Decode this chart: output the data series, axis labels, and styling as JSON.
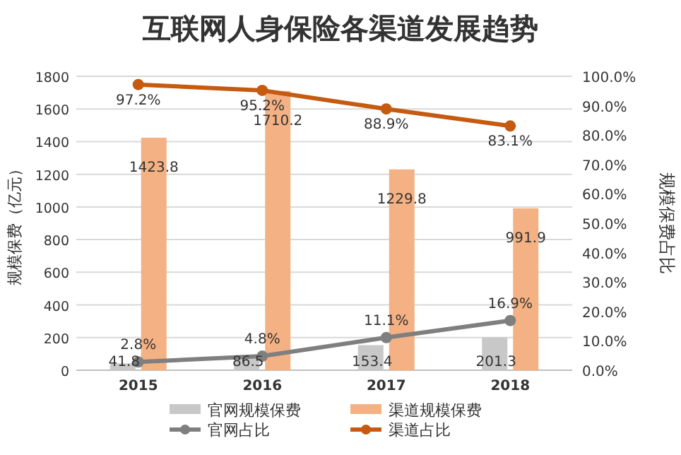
{
  "chart_data": {
    "type": "bar",
    "title": "互联网人身保险各渠道发展趋势",
    "ylabel": "规模保费（亿元）",
    "y2label": "规模保费占比",
    "categories": [
      "2015",
      "2016",
      "2017",
      "2018"
    ],
    "series": [
      {
        "name": "官网规模保费",
        "color": "#c8c8c8",
        "values": [
          41.8,
          86.5,
          153.4,
          201.3
        ],
        "value_labels": [
          "41.8",
          "86.5",
          "153.4",
          "201.3"
        ]
      },
      {
        "name": "渠道规模保费",
        "color": "#f4b183",
        "values": [
          1423.8,
          1710.2,
          1229.8,
          991.9
        ],
        "value_labels": [
          "1423.8",
          "1710.2",
          "1229.8",
          "991.9"
        ]
      },
      {
        "name": "官网占比",
        "type": "line",
        "axis": "y2",
        "color": "#7f7f7f",
        "marker": "circle",
        "values": [
          2.8,
          4.8,
          11.1,
          16.9
        ],
        "value_labels": [
          "2.8%",
          "4.8%",
          "11.1%",
          "16.9%"
        ]
      },
      {
        "name": "渠道占比",
        "type": "line",
        "axis": "y2",
        "color": "#c55a11",
        "marker": "circle",
        "values": [
          97.2,
          95.2,
          88.9,
          83.1
        ],
        "value_labels": [
          "97.2%",
          "95.2%",
          "88.9%",
          "83.1%"
        ]
      }
    ],
    "ylim": [
      0,
      1800
    ],
    "yticks": [
      0,
      200,
      400,
      600,
      800,
      1000,
      1200,
      1400,
      1600,
      1800
    ],
    "y2lim": [
      0,
      100
    ],
    "y2ticks": [
      {
        "value": 0,
        "label": "0.0%"
      },
      {
        "value": 10,
        "label": "10.0%"
      },
      {
        "value": 20,
        "label": "20.0%"
      },
      {
        "value": 30,
        "label": "30.0%"
      },
      {
        "value": 40,
        "label": "40.0%"
      },
      {
        "value": 50,
        "label": "50.0%"
      },
      {
        "value": 60,
        "label": "60.0%"
      },
      {
        "value": 70,
        "label": "70.0%"
      },
      {
        "value": 80,
        "label": "80.0%"
      },
      {
        "value": 90,
        "label": "90.0%"
      },
      {
        "value": 100,
        "label": "100.0%"
      }
    ],
    "grid": "y",
    "legend": "bottom"
  }
}
